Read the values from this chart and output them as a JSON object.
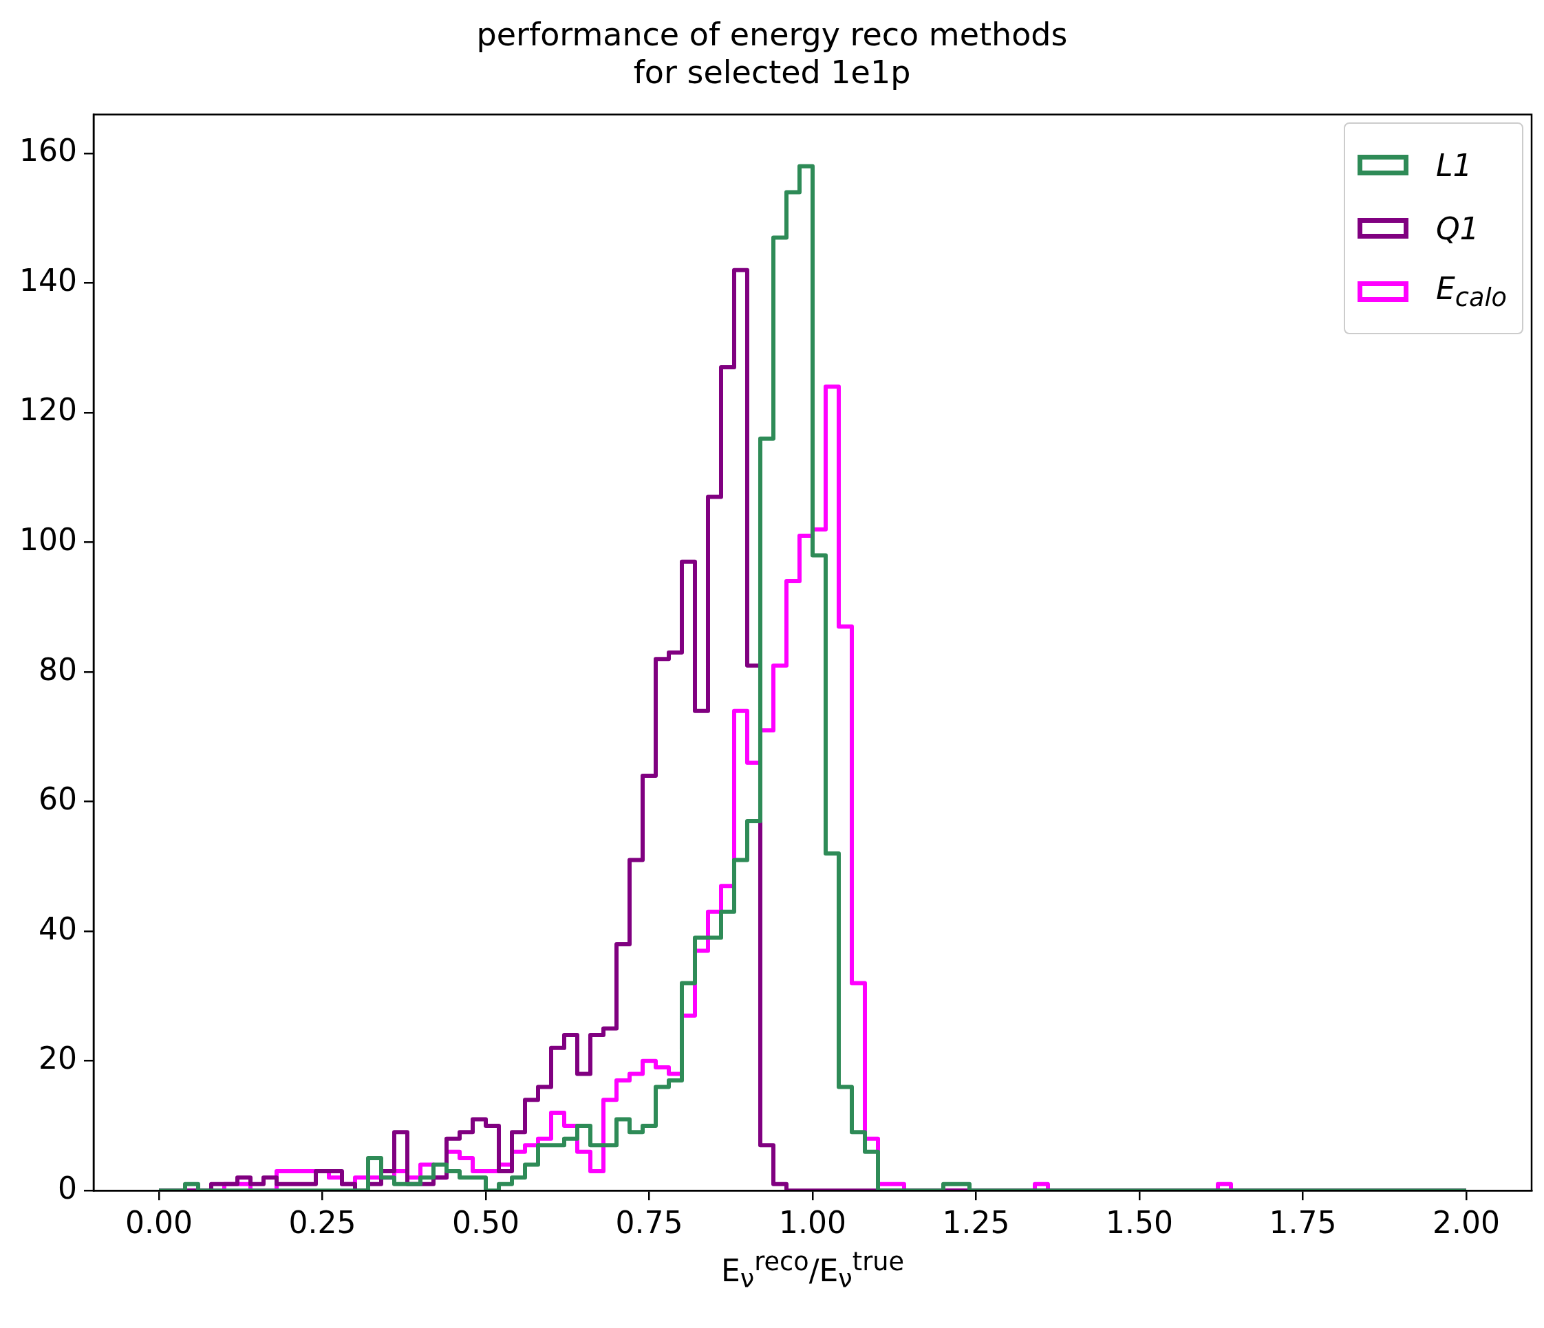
{
  "chart_data": {
    "type": "histogram",
    "title": "performance of energy reco methods\nfor selected 1e1p",
    "xlabel": "E$_{ν}$$^{reco}$/E$_{ν}$$^{true}$",
    "bins": [
      0,
      0.02,
      0.04,
      0.06,
      0.08,
      0.1,
      0.12,
      0.14,
      0.16,
      0.18,
      0.2,
      0.22,
      0.24,
      0.26,
      0.28,
      0.3,
      0.32,
      0.34,
      0.36,
      0.38,
      0.4,
      0.42,
      0.44,
      0.46,
      0.48,
      0.5,
      0.52,
      0.54,
      0.56,
      0.58,
      0.6,
      0.62,
      0.64,
      0.66,
      0.68,
      0.7,
      0.72,
      0.74,
      0.76,
      0.78,
      0.8,
      0.82,
      0.84,
      0.86,
      0.88,
      0.9,
      0.92,
      0.94,
      0.96,
      0.98,
      1,
      1.02,
      1.04,
      1.06,
      1.08,
      1.1,
      1.12,
      1.14,
      1.16,
      1.18,
      1.2,
      1.22,
      1.24,
      1.26,
      1.28,
      1.3,
      1.32,
      1.34,
      1.36,
      1.38,
      1.4,
      1.42,
      1.44,
      1.46,
      1.48,
      1.5,
      1.52,
      1.54,
      1.56,
      1.58,
      1.6,
      1.62,
      1.64,
      1.66,
      1.68,
      1.7,
      1.72,
      1.74,
      1.76,
      1.78,
      1.8,
      1.82,
      1.84,
      1.86,
      1.88,
      1.9,
      1.92,
      1.94,
      1.96,
      1.98,
      2
    ],
    "series": [
      {
        "name": "L1",
        "color": "#2e8b57",
        "values": [
          0,
          0,
          1,
          0,
          0,
          0,
          0,
          0,
          0,
          0,
          0,
          0,
          0,
          0,
          0,
          0,
          5,
          2,
          1,
          1,
          2,
          4,
          3,
          2,
          2,
          0,
          1,
          2,
          4,
          7,
          7,
          8,
          10,
          7,
          7,
          11,
          9,
          10,
          16,
          17,
          32,
          39,
          39,
          43,
          51,
          57,
          116,
          147,
          154,
          158,
          98,
          52,
          16,
          9,
          6,
          0,
          0,
          0,
          0,
          0,
          1,
          1,
          0,
          0,
          0,
          0,
          0,
          0,
          0,
          0,
          0,
          0,
          0,
          0,
          0,
          0,
          0,
          0,
          0,
          0,
          0,
          0,
          0,
          0,
          0,
          0,
          0,
          0,
          0,
          0,
          0,
          0,
          0,
          0,
          0,
          0,
          0,
          0,
          0,
          0
        ]
      },
      {
        "name": "Q1",
        "color": "#800080",
        "values": [
          0,
          0,
          0,
          0,
          1,
          1,
          2,
          1,
          2,
          1,
          1,
          1,
          3,
          3,
          1,
          0,
          1,
          3,
          9,
          1,
          1,
          2,
          8,
          9,
          11,
          10,
          3,
          9,
          14,
          16,
          22,
          24,
          18,
          24,
          25,
          38,
          51,
          64,
          82,
          83,
          97,
          74,
          107,
          127,
          142,
          81,
          7,
          1,
          0,
          0,
          0,
          0,
          0,
          0,
          0,
          0,
          0,
          0,
          0,
          0,
          0,
          0,
          0,
          0,
          0,
          0,
          0,
          0,
          0,
          0,
          0,
          0,
          0,
          0,
          0,
          0,
          0,
          0,
          0,
          0,
          0,
          0,
          0,
          0,
          0,
          0,
          0,
          0,
          0,
          0,
          0,
          0,
          0,
          0,
          0,
          0,
          0,
          0,
          0,
          0
        ]
      },
      {
        "name": "E$_{calo}$",
        "color": "#ff00ff",
        "values": [
          0,
          0,
          0,
          0,
          0,
          1,
          1,
          0,
          0,
          3,
          3,
          3,
          3,
          2,
          1,
          2,
          2,
          2,
          3,
          2,
          4,
          2,
          6,
          5,
          3,
          3,
          4,
          6,
          7,
          8,
          12,
          10,
          6,
          3,
          14,
          17,
          18,
          20,
          19,
          18,
          27,
          37,
          43,
          47,
          74,
          66,
          71,
          81,
          94,
          101,
          102,
          124,
          87,
          32,
          8,
          1,
          1,
          0,
          0,
          0,
          0,
          0,
          0,
          0,
          0,
          0,
          0,
          1,
          0,
          0,
          0,
          0,
          0,
          0,
          0,
          0,
          0,
          0,
          0,
          0,
          0,
          1,
          0,
          0,
          0,
          0,
          0,
          0,
          0,
          0,
          0,
          0,
          0,
          0,
          0,
          0,
          0,
          0,
          0,
          0
        ]
      }
    ],
    "xlim": [
      -0.1,
      2.1
    ],
    "ylim": [
      0,
      166
    ],
    "xticks": [
      {
        "value": 0,
        "label": "0.00"
      },
      {
        "value": 0.25,
        "label": "0.25"
      },
      {
        "value": 0.5,
        "label": "0.50"
      },
      {
        "value": 0.75,
        "label": "0.75"
      },
      {
        "value": 1,
        "label": "1.00"
      },
      {
        "value": 1.25,
        "label": "1.25"
      },
      {
        "value": 1.5,
        "label": "1.50"
      },
      {
        "value": 1.75,
        "label": "1.75"
      },
      {
        "value": 2,
        "label": "2.00"
      }
    ],
    "yticks": [
      0,
      20,
      40,
      60,
      80,
      100,
      120,
      140,
      160
    ],
    "grid": false,
    "legend": "top right"
  }
}
